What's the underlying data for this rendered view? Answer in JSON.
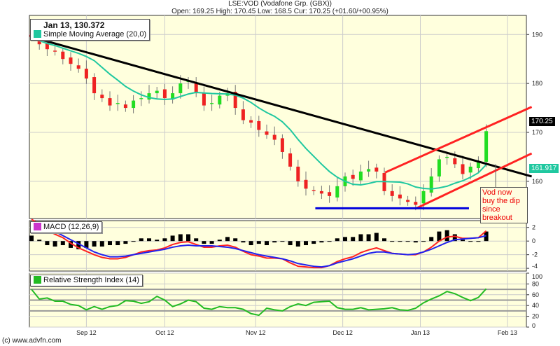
{
  "header": {
    "title": "LSE:VOD (Vodafone Grp. (GBX))",
    "quote": "Open: 169.25 High: 170.45 Low: 168.5 Cur: 170.25 (+01.60/+00.95%)"
  },
  "legend_main": {
    "date_value": "Jan 13, 130.372",
    "sma_label": "Simple Moving Average (20,0)",
    "sma_color": "#20c8a0"
  },
  "legend_macd": {
    "label": "MACD (12,26,9)",
    "color": "#cc33cc"
  },
  "legend_rsi": {
    "label": "Relative Strength Index (14)",
    "color": "#22bb22"
  },
  "annotation": "Vod now buy the dip since breakout",
  "price_tags": {
    "current": "170.25",
    "sma": "161.917"
  },
  "copyright": "(c) www.advfn.com",
  "colors": {
    "up": "#22dd22",
    "down": "#ee2222",
    "background": "#ffffdd",
    "trendline": "#000000",
    "channel": "#ff2222",
    "support": "#0000dd",
    "macd": "#ff2222",
    "signal": "#2222ee",
    "rsi": "#22bb22"
  },
  "chart_data": [
    {
      "type": "candlestick",
      "panel": "price",
      "ylim": [
        152.4,
        193.9
      ],
      "yticks": [
        160,
        170,
        180,
        190
      ],
      "xticks": [
        {
          "label": "Sep 12",
          "index": 7
        },
        {
          "label": "Oct 12",
          "index": 17
        },
        {
          "label": "Nov 12",
          "index": 28.6
        },
        {
          "label": "Dec 12",
          "index": 39.7
        },
        {
          "label": "Jan 13",
          "index": 49.6
        },
        {
          "label": "Feb 13",
          "index": 60.7
        }
      ],
      "closes": [
        189.5,
        188,
        187,
        186.5,
        185,
        184,
        183,
        181,
        178,
        177,
        175.5,
        176,
        175,
        176.5,
        177,
        178,
        178.5,
        177,
        178,
        180,
        180.5,
        178,
        175.5,
        176,
        177.5,
        178,
        175,
        172.5,
        172,
        170.5,
        169.5,
        168.5,
        166,
        163,
        160,
        158.5,
        158,
        157.5,
        157,
        159,
        161,
        160.5,
        162,
        162.5,
        162,
        158,
        157,
        156.5,
        155.8,
        155.2,
        158,
        161,
        164.5,
        165,
        163.5,
        161.5,
        163,
        164,
        170.25
      ],
      "sma_period": 20,
      "lines": [
        {
          "name": "downtrend",
          "color": "#000000",
          "from": [
            0,
            189.5
          ],
          "to": [
            63.8,
            161
          ]
        },
        {
          "name": "channel-upper",
          "color": "#ff2222",
          "from": [
            45.1,
            161.8
          ],
          "to": [
            63.8,
            175.2
          ]
        },
        {
          "name": "channel-lower",
          "color": "#ff2222",
          "from": [
            49.1,
            154.5
          ],
          "to": [
            63.8,
            165.7
          ]
        },
        {
          "name": "support",
          "color": "#0000dd",
          "from": [
            36.2,
            154.5
          ],
          "to": [
            55.8,
            154.5
          ]
        }
      ]
    },
    {
      "type": "line",
      "panel": "macd",
      "ylim": [
        -4.4,
        3.0
      ],
      "yticks": [
        -4,
        -2,
        0,
        2
      ],
      "series": [
        {
          "role": "macd",
          "values": [
            3.2,
            2.5,
            1.6,
            1.0,
            0.5,
            -0.3,
            -1.0,
            -1.5,
            -2.0,
            -2.4,
            -2.6,
            -2.6,
            -2.4,
            -2.0,
            -1.6,
            -1.4,
            -1.3,
            -1.0,
            -0.5,
            -0.2,
            -0.1,
            -0.5,
            -0.9,
            -0.9,
            -0.7,
            -0.6,
            -0.9,
            -1.5,
            -2.0,
            -2.2,
            -2.5,
            -2.5,
            -2.6,
            -3.2,
            -3.7,
            -3.8,
            -3.9,
            -3.9,
            -3.6,
            -3.0,
            -2.6,
            -2.3,
            -1.7,
            -1.3,
            -1.0,
            -1.4,
            -1.8,
            -1.9,
            -2.0,
            -2.0,
            -1.6,
            -0.9,
            0.0,
            0.6,
            0.7,
            0.4,
            0.4,
            0.5,
            1.5
          ]
        },
        {
          "role": "signal",
          "values": [
            2.8,
            2.4,
            1.9,
            1.4,
            0.8,
            0.2,
            -0.4,
            -1.0,
            -1.6,
            -2.0,
            -2.3,
            -2.3,
            -2.2,
            -2.0,
            -1.8,
            -1.6,
            -1.4,
            -1.2,
            -0.9,
            -0.7,
            -0.6,
            -0.7,
            -0.7,
            -0.7,
            -0.8,
            -0.9,
            -1.1,
            -1.4,
            -1.7,
            -2.0,
            -2.2,
            -2.4,
            -2.6,
            -2.9,
            -3.3,
            -3.5,
            -3.7,
            -3.8,
            -3.6,
            -3.2,
            -2.9,
            -2.6,
            -2.2,
            -1.8,
            -1.6,
            -1.6,
            -1.8,
            -1.9,
            -2.0,
            -1.9,
            -1.6,
            -1.2,
            -0.7,
            -0.2,
            0.2,
            0.3,
            0.4,
            0.5,
            0.8
          ]
        }
      ]
    },
    {
      "type": "line",
      "panel": "rsi",
      "ylim": [
        0,
        100
      ],
      "yticks": [
        0,
        20,
        40,
        60,
        80,
        100
      ],
      "reference_lines": [
        30,
        50,
        70
      ],
      "series": [
        {
          "role": "rsi",
          "values": [
            70,
            52,
            54,
            48,
            48,
            42,
            40,
            32,
            38,
            33,
            38,
            40,
            49,
            48,
            44,
            47,
            57,
            50,
            38,
            43,
            50,
            47,
            35,
            33,
            38,
            36,
            36,
            33,
            25,
            22,
            35,
            32,
            30,
            38,
            43,
            40,
            46,
            47,
            48,
            36,
            33,
            33,
            36,
            32,
            33,
            34,
            36,
            32,
            31,
            35,
            45,
            52,
            58,
            66,
            62,
            55,
            49,
            55,
            71
          ]
        }
      ]
    }
  ]
}
